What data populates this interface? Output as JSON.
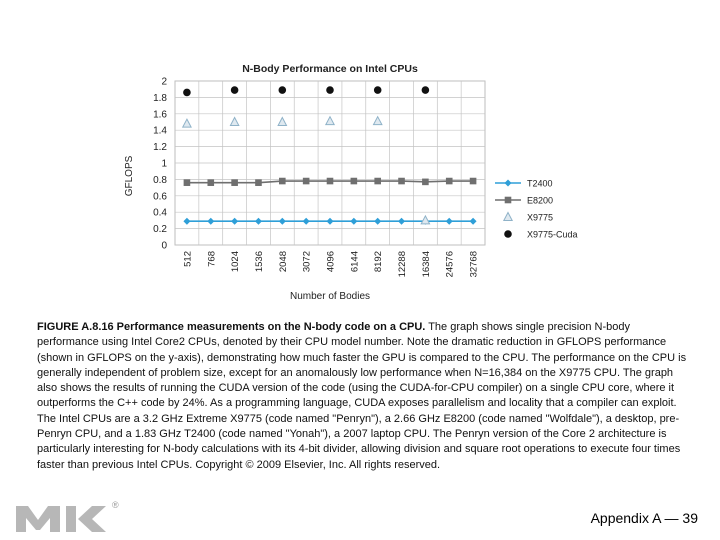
{
  "chart_data": {
    "type": "line",
    "title": "N-Body Performance on Intel CPUs",
    "xlabel": "Number of Bodies",
    "ylabel": "GFLOPS",
    "ylim": [
      0,
      2
    ],
    "yticks": [
      "0",
      "0.2",
      "0.4",
      "0.6",
      "0.8",
      "1",
      "1.2",
      "1.4",
      "1.6",
      "1.8",
      "2"
    ],
    "categories": [
      "512",
      "768",
      "1024",
      "1536",
      "2048",
      "3072",
      "4096",
      "6144",
      "8192",
      "12288",
      "16384",
      "24576",
      "32768"
    ],
    "legend_position": "right",
    "grid": true,
    "series": [
      {
        "name": "T2400",
        "marker": "diamond",
        "line": true,
        "color": "#2f9fd8",
        "values": [
          0.29,
          0.29,
          0.29,
          0.29,
          0.29,
          0.29,
          0.29,
          0.29,
          0.29,
          0.29,
          0.29,
          0.29,
          0.29
        ]
      },
      {
        "name": "E8200",
        "marker": "square",
        "line": true,
        "color": "#6f6f6f",
        "values": [
          0.76,
          0.76,
          0.76,
          0.76,
          0.78,
          0.78,
          0.78,
          0.78,
          0.78,
          0.78,
          0.77,
          0.78,
          0.78
        ]
      },
      {
        "name": "X9775",
        "marker": "triangle",
        "line": false,
        "color": "#8fb2c8",
        "values": [
          1.48,
          null,
          1.5,
          null,
          1.5,
          null,
          1.51,
          null,
          1.51,
          null,
          0.3,
          null,
          null
        ]
      },
      {
        "name": "X9775-Cuda",
        "marker": "circle",
        "line": false,
        "color": "#111111",
        "values": [
          1.86,
          null,
          1.89,
          null,
          1.89,
          null,
          1.89,
          null,
          1.89,
          null,
          1.89,
          null,
          null
        ]
      }
    ]
  },
  "caption": {
    "label": "FIGURE A.8.16 Performance measurements on the N-body code on a CPU.",
    "body": " The graph shows single precision N-body performance using Intel Core2 CPUs, denoted by their CPU model number. Note the dramatic reduction in GFLOPS performance (shown in GFLOPS on the y-axis), demonstrating how much faster the GPU is compared to the CPU. The performance on the CPU is generally independent of problem size, except for an anomalously low performance when N=16,384 on the X9775 CPU. The graph also shows the results of running the CUDA version of the code (using the CUDA-for-CPU compiler) on a single CPU core, where it outperforms the C++ code by 24%. As a programming language, CUDA exposes parallelism and locality that a compiler can exploit. The Intel CPUs are a 3.2 GHz Extreme X9775 (code named \"Penryn\"), a 2.66 GHz E8200 (code named \"Wolfdale\"), a desktop, pre-Penryn CPU, and a 1.83 GHz T2400 (code named \"Yonah\"), a 2007 laptop CPU. The Penryn version of the Core 2 architecture is particularly interesting for N-body calculations with its 4-bit divider, allowing division and square root operations to execute four times faster than previous Intel CPUs. Copyright © 2009 Elsevier, Inc. All rights reserved."
  },
  "footer": {
    "text": "Appendix A — 39"
  },
  "logo": {
    "icon": "mk-publisher-logo-icon",
    "mark": "®"
  }
}
